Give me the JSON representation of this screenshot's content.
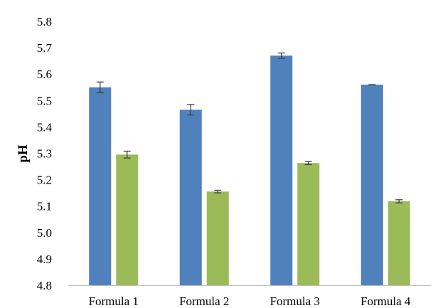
{
  "chart_data": {
    "type": "bar",
    "title": "",
    "xlabel": "",
    "ylabel": "pH",
    "ylim": [
      4.8,
      5.8
    ],
    "yticks": [
      "4.8",
      "4.9",
      "5.0",
      "5.1",
      "5.2",
      "5.3",
      "5.4",
      "5.5",
      "5.6",
      "5.7",
      "5.8"
    ],
    "categories": [
      "Formula 1",
      "Formula 2",
      "Formula 3",
      "Formula 4"
    ],
    "series": [
      {
        "color": "#4f81bd",
        "values": [
          5.55,
          5.465,
          5.67,
          5.56
        ],
        "errors": [
          0.02,
          0.02,
          0.01,
          0.0
        ]
      },
      {
        "color": "#9bbb59",
        "values": [
          5.295,
          5.155,
          5.263,
          5.118
        ],
        "errors": [
          0.013,
          0.005,
          0.006,
          0.006
        ]
      }
    ],
    "grid": false,
    "legend": "none",
    "error_bar_color": "#404040",
    "axis_color": "#bfbfbf"
  }
}
